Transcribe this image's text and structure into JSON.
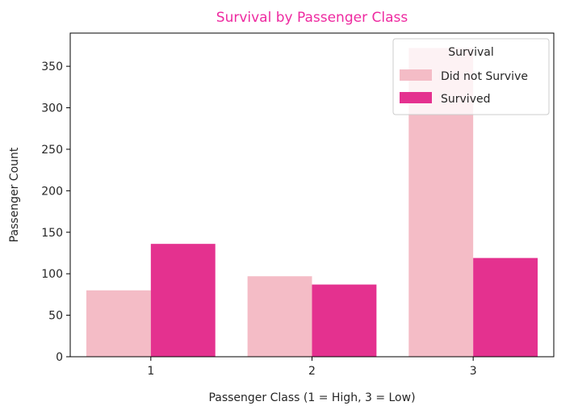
{
  "chart_data": {
    "type": "bar",
    "title": "Survival by Passenger Class",
    "xlabel": "Passenger Class (1 = High, 3 = Low)",
    "ylabel": "Passenger Count",
    "categories": [
      "1",
      "2",
      "3"
    ],
    "series": [
      {
        "name": "Did not Survive",
        "values": [
          80,
          97,
          372
        ],
        "color": "#f4bcc6"
      },
      {
        "name": "Survived",
        "values": [
          136,
          87,
          119
        ],
        "color": "#e4318f"
      }
    ],
    "ylim": [
      0,
      390
    ],
    "yticks": [
      0,
      50,
      100,
      150,
      200,
      250,
      300,
      350
    ],
    "grid": false,
    "legend": {
      "title": "Survival",
      "position": "top-right"
    }
  }
}
